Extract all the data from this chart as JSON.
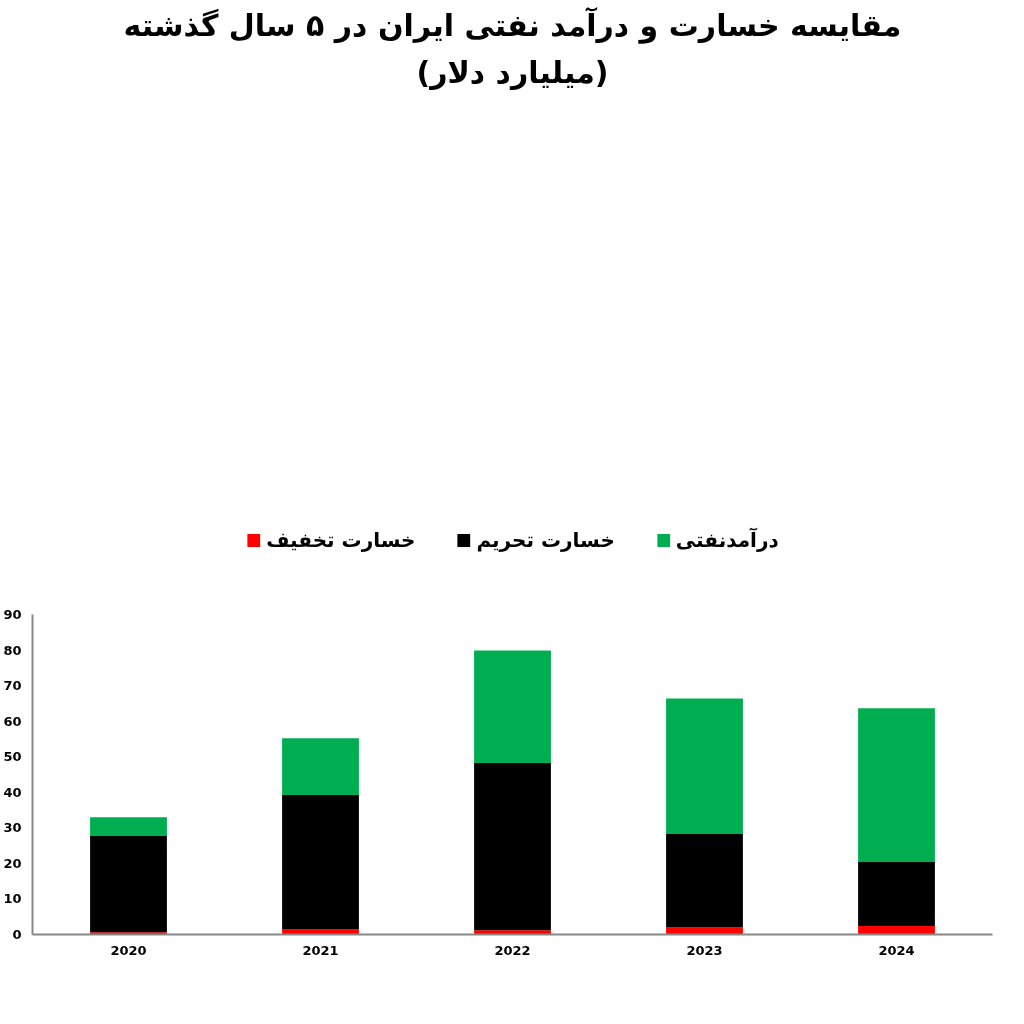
{
  "chart_data": {
    "type": "bar",
    "title": "مقایسه خسارت و درآمد نفتی ایران در ۵ سال گذشته",
    "subtitle": "(میلیارد دلار)",
    "categories": [
      "2020",
      "2021",
      "2022",
      "2023",
      "2024"
    ],
    "stacked": true,
    "series": [
      {
        "name": "خسارت تخفیف",
        "color": "#ff0000",
        "values": [
          0.6,
          1.4,
          1.2,
          2.0,
          2.4
        ]
      },
      {
        "name": "خسارت تحریم",
        "color": "#000000",
        "values": [
          27.1,
          37.8,
          47.0,
          26.3,
          18.0
        ]
      },
      {
        "name": "درآمدنفتی",
        "color": "#00ad50",
        "values": [
          5.3,
          16.0,
          31.7,
          38.1,
          43.2
        ]
      }
    ],
    "ylim": [
      0,
      90
    ],
    "yticks": [
      0,
      10,
      20,
      30,
      40,
      50,
      60,
      70,
      80,
      90
    ],
    "grid": false,
    "legend": "top"
  }
}
